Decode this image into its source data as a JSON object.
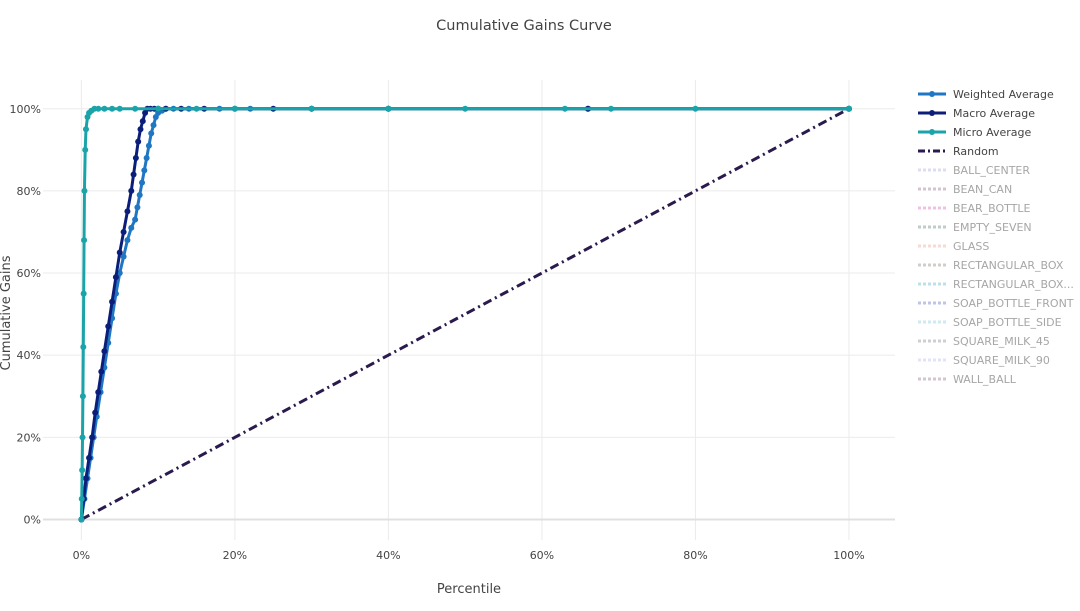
{
  "chart_data": {
    "type": "line",
    "title": "Cumulative Gains Curve",
    "xlabel": "Percentile",
    "ylabel": "Cumulative Gains",
    "xlim": [
      -0.05,
      1.06
    ],
    "ylim": [
      -0.05,
      1.07
    ],
    "x_ticks": [
      0,
      0.2,
      0.4,
      0.6,
      0.8,
      1.0
    ],
    "x_tick_labels": [
      "0%",
      "20%",
      "40%",
      "60%",
      "80%",
      "100%"
    ],
    "y_ticks": [
      0,
      0.2,
      0.4,
      0.6,
      0.8,
      1.0
    ],
    "y_tick_labels": [
      "0%",
      "20%",
      "40%",
      "60%",
      "80%",
      "100%"
    ],
    "grid": true,
    "legend_position": "right",
    "series": [
      {
        "name": "Weighted Average",
        "color": "#1f77c4",
        "style": "lines+markers",
        "visible": true,
        "x": [
          0,
          0.004,
          0.008,
          0.012,
          0.016,
          0.02,
          0.025,
          0.03,
          0.035,
          0.04,
          0.045,
          0.05,
          0.055,
          0.06,
          0.065,
          0.07,
          0.073,
          0.076,
          0.079,
          0.082,
          0.085,
          0.088,
          0.091,
          0.094,
          0.097,
          0.1,
          0.105,
          0.11,
          0.12,
          0.14,
          0.18,
          0.22,
          0.3,
          0.4,
          0.66,
          1.0
        ],
        "y": [
          0,
          0.05,
          0.1,
          0.15,
          0.2,
          0.25,
          0.31,
          0.37,
          0.43,
          0.49,
          0.55,
          0.6,
          0.64,
          0.68,
          0.71,
          0.73,
          0.76,
          0.79,
          0.82,
          0.85,
          0.88,
          0.91,
          0.94,
          0.96,
          0.98,
          0.99,
          0.995,
          1.0,
          1.0,
          1.0,
          1.0,
          1.0,
          1.0,
          1.0,
          1.0,
          1.0
        ]
      },
      {
        "name": "Macro Average",
        "color": "#0b1f7a",
        "style": "lines+markers",
        "visible": true,
        "x": [
          0,
          0.003,
          0.006,
          0.01,
          0.014,
          0.018,
          0.022,
          0.026,
          0.03,
          0.035,
          0.04,
          0.045,
          0.05,
          0.055,
          0.06,
          0.065,
          0.068,
          0.071,
          0.074,
          0.077,
          0.08,
          0.083,
          0.086,
          0.09,
          0.095,
          0.1,
          0.11,
          0.13,
          0.16,
          0.2,
          0.25,
          0.3,
          0.4,
          0.66,
          1.0
        ],
        "y": [
          0,
          0.05,
          0.1,
          0.15,
          0.2,
          0.26,
          0.31,
          0.36,
          0.41,
          0.47,
          0.53,
          0.59,
          0.65,
          0.7,
          0.75,
          0.8,
          0.84,
          0.88,
          0.92,
          0.95,
          0.97,
          0.99,
          1.0,
          1.0,
          1.0,
          1.0,
          1.0,
          1.0,
          1.0,
          1.0,
          1.0,
          1.0,
          1.0,
          1.0,
          1.0
        ]
      },
      {
        "name": "Micro Average",
        "color": "#1aa3a8",
        "style": "lines+markers",
        "visible": true,
        "x": [
          0,
          0.0005,
          0.001,
          0.0015,
          0.002,
          0.0025,
          0.003,
          0.0035,
          0.004,
          0.005,
          0.006,
          0.008,
          0.01,
          0.013,
          0.017,
          0.022,
          0.03,
          0.04,
          0.05,
          0.07,
          0.1,
          0.15,
          0.2,
          0.3,
          0.4,
          0.5,
          0.63,
          0.69,
          0.8,
          1.0
        ],
        "y": [
          0,
          0.05,
          0.12,
          0.2,
          0.3,
          0.42,
          0.55,
          0.68,
          0.8,
          0.9,
          0.95,
          0.98,
          0.99,
          0.995,
          1.0,
          1.0,
          1.0,
          1.0,
          1.0,
          1.0,
          1.0,
          1.0,
          1.0,
          1.0,
          1.0,
          1.0,
          1.0,
          1.0,
          1.0,
          1.0
        ]
      },
      {
        "name": "Random",
        "color": "#2a1a4e",
        "style": "dashdot",
        "visible": true,
        "x": [
          0,
          1.0
        ],
        "y": [
          0,
          1.0
        ]
      },
      {
        "name": "BALL_CENTER",
        "color": "#b9bde8",
        "style": "dot",
        "visible": false
      },
      {
        "name": "BEAN_CAN",
        "color": "#a88aa3",
        "style": "dot",
        "visible": false
      },
      {
        "name": "BEAR_BOTTLE",
        "color": "#e585c8",
        "style": "dot",
        "visible": false
      },
      {
        "name": "EMPTY_SEVEN",
        "color": "#7f9a97",
        "style": "dot",
        "visible": false
      },
      {
        "name": "GLASS",
        "color": "#f2b7a6",
        "style": "dot",
        "visible": false
      },
      {
        "name": "RECTANGULAR_BOX",
        "color": "#a89c94",
        "style": "dot",
        "visible": false
      },
      {
        "name": "RECTANGULAR_BOX...",
        "color": "#7dc4d6",
        "style": "dot",
        "visible": false
      },
      {
        "name": "SOAP_BOTTLE_FRONT",
        "color": "#7e8fd0",
        "style": "dot",
        "visible": false
      },
      {
        "name": "SOAP_BOTTLE_SIDE",
        "color": "#9fd6e8",
        "style": "dot",
        "visible": false
      },
      {
        "name": "SQUARE_MILK_45",
        "color": "#9ea0ad",
        "style": "dot",
        "visible": false
      },
      {
        "name": "SQUARE_MILK_90",
        "color": "#c9c9ee",
        "style": "dot",
        "visible": false
      },
      {
        "name": "WALL_BALL",
        "color": "#a98fa5",
        "style": "dot",
        "visible": false
      }
    ]
  }
}
